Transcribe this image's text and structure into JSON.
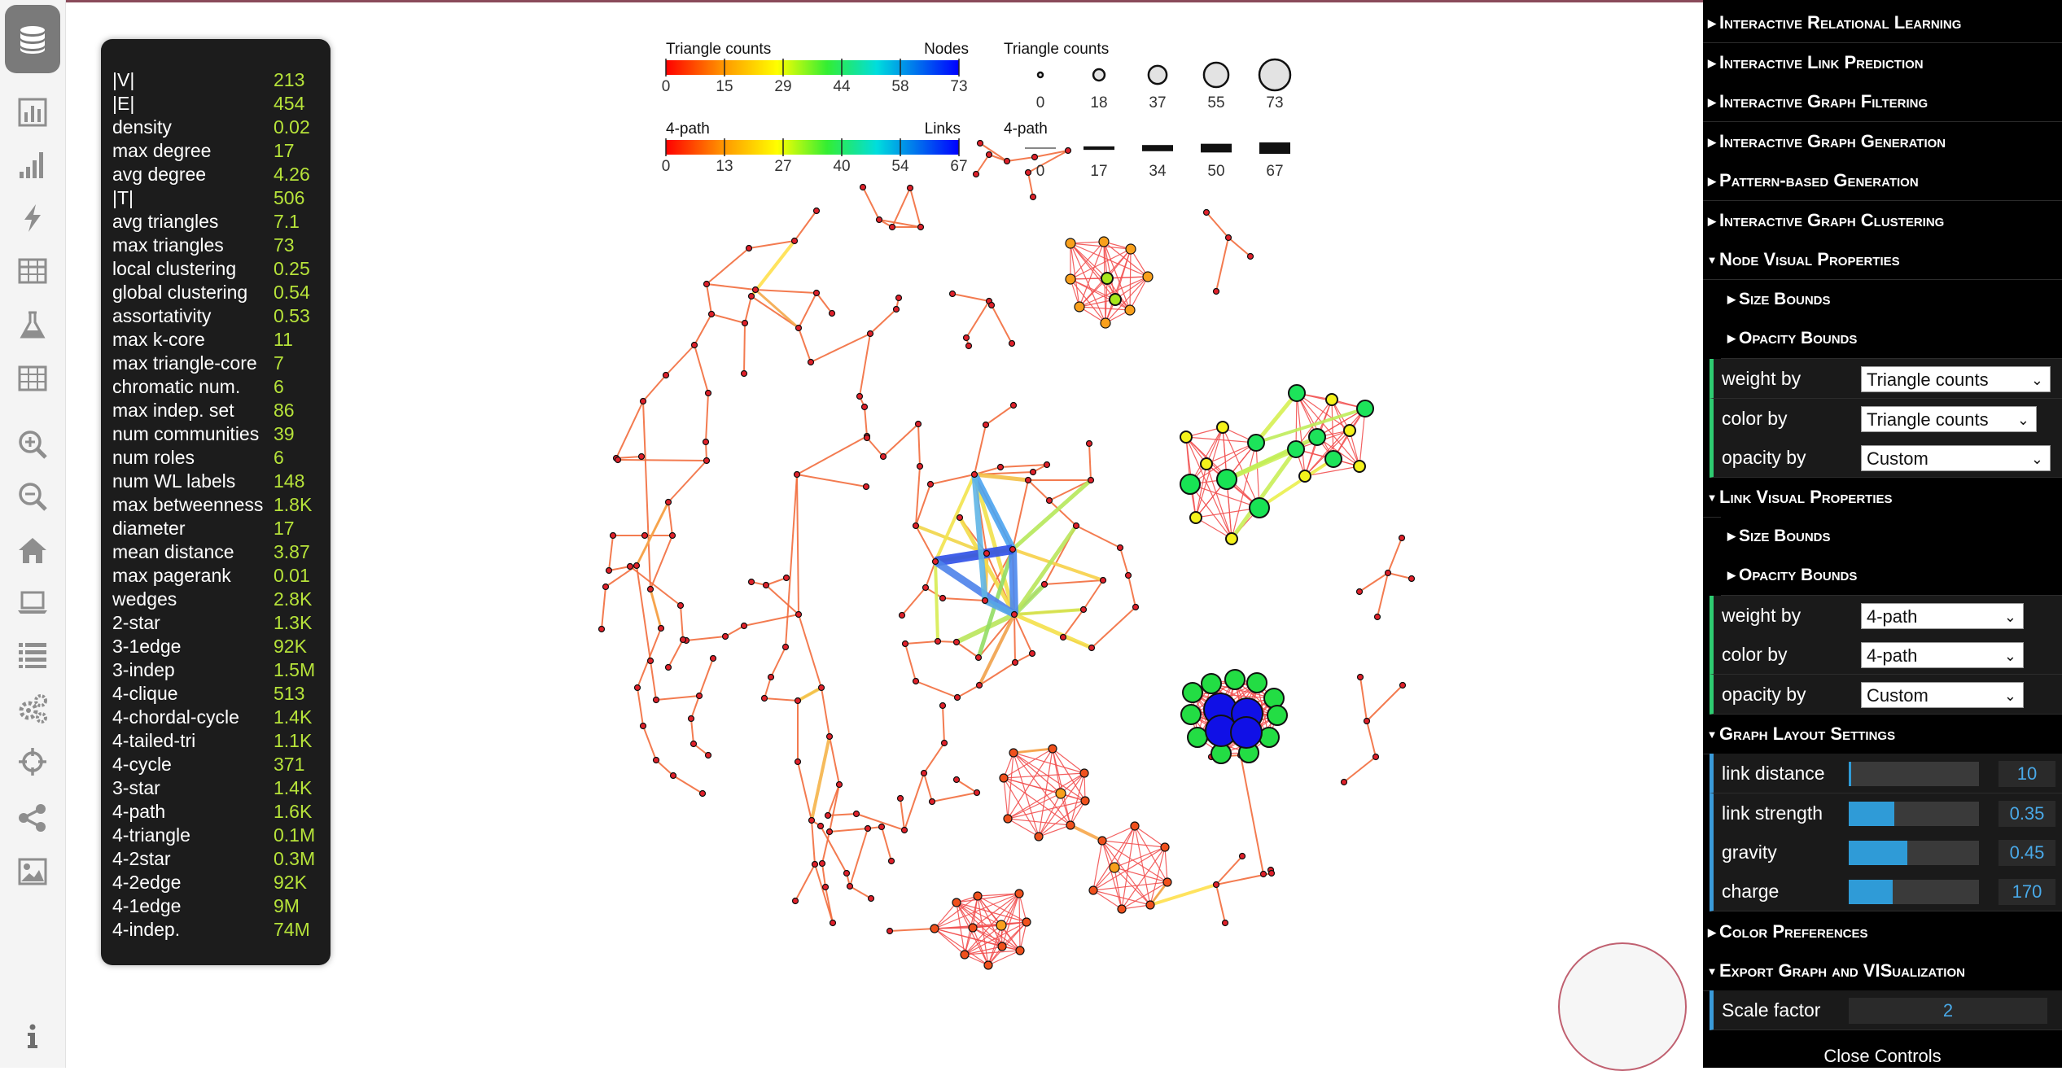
{
  "stats": [
    {
      "label": "|V|",
      "value": "213"
    },
    {
      "label": "|E|",
      "value": "454"
    },
    {
      "label": "density",
      "value": "0.02"
    },
    {
      "label": "max degree",
      "value": "17"
    },
    {
      "label": "avg degree",
      "value": "4.26"
    },
    {
      "label": "|T|",
      "value": "506"
    },
    {
      "label": "avg triangles",
      "value": "7.1"
    },
    {
      "label": "max triangles",
      "value": "73"
    },
    {
      "label": "local clustering",
      "value": "0.25"
    },
    {
      "label": "global clustering",
      "value": "0.54"
    },
    {
      "label": "assortativity",
      "value": "0.53"
    },
    {
      "label": "max k-core",
      "value": "11"
    },
    {
      "label": "max triangle-core",
      "value": "7"
    },
    {
      "label": "chromatic num.",
      "value": "6"
    },
    {
      "label": "max indep. set",
      "value": "86"
    },
    {
      "label": "num communities",
      "value": "39"
    },
    {
      "label": "num roles",
      "value": "6"
    },
    {
      "label": "num WL labels",
      "value": "148"
    },
    {
      "label": "max betweenness",
      "value": "1.8K"
    },
    {
      "label": "diameter",
      "value": "17"
    },
    {
      "label": "mean distance",
      "value": "3.87"
    },
    {
      "label": "max pagerank",
      "value": "0.01"
    },
    {
      "label": "wedges",
      "value": "2.8K"
    },
    {
      "label": "2-star",
      "value": "1.3K"
    },
    {
      "label": "3-1edge",
      "value": "92K"
    },
    {
      "label": "3-indep",
      "value": "1.5M"
    },
    {
      "label": "4-clique",
      "value": "513"
    },
    {
      "label": "4-chordal-cycle",
      "value": "1.4K"
    },
    {
      "label": "4-tailed-tri",
      "value": "1.1K"
    },
    {
      "label": "4-cycle",
      "value": "371"
    },
    {
      "label": "3-star",
      "value": "1.4K"
    },
    {
      "label": "4-path",
      "value": "1.6K"
    },
    {
      "label": "4-triangle",
      "value": "0.1M"
    },
    {
      "label": "4-2star",
      "value": "0.3M"
    },
    {
      "label": "4-2edge",
      "value": "92K"
    },
    {
      "label": "4-1edge",
      "value": "9M"
    },
    {
      "label": "4-indep.",
      "value": "74M"
    }
  ],
  "sidebar_icons": [
    "database-icon",
    "bar-chart-icon",
    "signal-bars-icon",
    "lightning-icon",
    "table-icon",
    "flask-icon",
    "grid-table-icon",
    "zoom-in-icon",
    "zoom-out-icon",
    "home-icon",
    "laptop-icon",
    "list-icon",
    "gears-icon",
    "crosshair-icon",
    "share-icon",
    "image-icon",
    "info-icon"
  ],
  "legend": {
    "node_color": {
      "title_left": "Triangle counts",
      "title_right": "Nodes",
      "ticks": [
        "0",
        "15",
        "29",
        "44",
        "58",
        "73"
      ]
    },
    "link_color": {
      "title_left": "4-path",
      "title_right": "Links",
      "ticks": [
        "0",
        "13",
        "27",
        "40",
        "54",
        "67"
      ]
    },
    "node_size": {
      "title": "Triangle counts",
      "ticks": [
        "0",
        "18",
        "37",
        "55",
        "73"
      ]
    },
    "link_size": {
      "title": "4-path",
      "ticks": [
        "0",
        "17",
        "34",
        "50",
        "67"
      ]
    }
  },
  "controls": {
    "sections": {
      "relational": "Interactive Relational Learning",
      "link_prediction": "Interactive Link Prediction",
      "graph_filtering": "Interactive Graph Filtering",
      "graph_generation": "Interactive Graph Generation",
      "pattern_generation": "Pattern-based Generation",
      "graph_clustering": "Interactive Graph Clustering",
      "node_visual": "Node Visual Properties",
      "link_visual": "Link Visual Properties",
      "layout": "Graph Layout Settings",
      "color_prefs": "Color Preferences",
      "export": "Export Graph and VISualization"
    },
    "size_bounds": "Size Bounds",
    "opacity_bounds": "Opacity Bounds",
    "node_rows": [
      {
        "label": "weight by",
        "value": "Triangle counts"
      },
      {
        "label": "color by",
        "value": "Triangle counts"
      },
      {
        "label": "opacity by",
        "value": "Custom"
      }
    ],
    "link_rows": [
      {
        "label": "weight by",
        "value": "4-path"
      },
      {
        "label": "color by",
        "value": "4-path"
      },
      {
        "label": "opacity by",
        "value": "Custom"
      }
    ],
    "layout_rows": [
      {
        "label": "link distance",
        "value": "10",
        "fraction": 0.02
      },
      {
        "label": "link strength",
        "value": "0.35",
        "fraction": 0.35
      },
      {
        "label": "gravity",
        "value": "0.45",
        "fraction": 0.45
      },
      {
        "label": "charge",
        "value": "170",
        "fraction": 0.34
      }
    ],
    "scale_factor": {
      "label": "Scale factor",
      "value": "2"
    },
    "close": "Close Controls"
  }
}
